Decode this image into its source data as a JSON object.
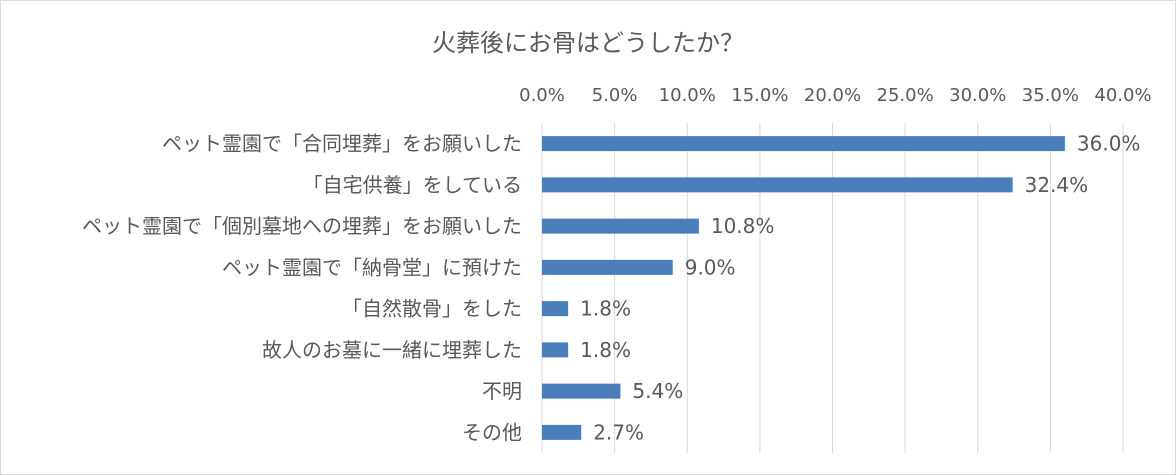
{
  "chart_data": {
    "type": "bar",
    "orientation": "horizontal",
    "title": "火葬後にお骨はどうしたか？",
    "categories": [
      "ペット霊園で「合同埋葬」をお願いした",
      "「自宅供養」をしている",
      "ペット霊園で「個別墓地への埋葬」をお願いした",
      "ペット霊園で「納骨堂」に預けた",
      "「自然散骨」をした",
      "故人のお墓に一緒に埋葬した",
      "不明",
      "その他"
    ],
    "values": [
      36.0,
      32.4,
      10.8,
      9.0,
      1.8,
      1.8,
      5.4,
      2.7
    ],
    "data_labels": [
      "36.0%",
      "32.4%",
      "10.8%",
      "9.0%",
      "1.8%",
      "1.8%",
      "5.4%",
      "2.7%"
    ],
    "xlim": [
      0,
      40
    ],
    "xticks": [
      0,
      5,
      10,
      15,
      20,
      25,
      30,
      35,
      40
    ],
    "xtick_labels": [
      "0.0%",
      "5.0%",
      "10.0%",
      "15.0%",
      "20.0%",
      "25.0%",
      "30.0%",
      "35.0%",
      "40.0%"
    ],
    "xaxis_position": "top",
    "grid": true,
    "legend": "none",
    "bar_color": "#4a7ebb",
    "grid_color": "#d9d9d9",
    "text_color": "#595959"
  }
}
